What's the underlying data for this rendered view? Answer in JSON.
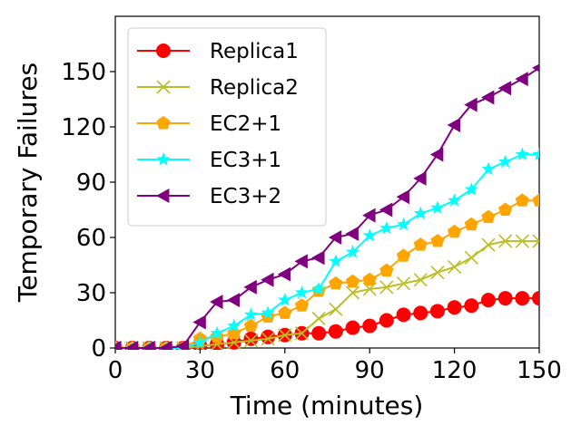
{
  "chart_data": {
    "type": "line",
    "title": "",
    "xlabel": "Time (minutes)",
    "ylabel": "Temporary Failures",
    "xlim": [
      0,
      150
    ],
    "ylim": [
      0,
      180
    ],
    "xticks": [
      0,
      30,
      60,
      90,
      120,
      150
    ],
    "yticks": [
      0,
      30,
      60,
      90,
      120,
      150
    ],
    "grid": false,
    "legend_position": "top-left",
    "x": [
      0,
      6,
      12,
      18,
      24,
      30,
      36,
      42,
      48,
      54,
      60,
      66,
      72,
      78,
      84,
      90,
      96,
      102,
      108,
      114,
      120,
      126,
      132,
      138,
      144,
      150
    ],
    "series": [
      {
        "name": "Replica1",
        "color": "#ff0000",
        "marker": "circle",
        "values": [
          0,
          0,
          0,
          0,
          0,
          1,
          2,
          3,
          5,
          6,
          7,
          8,
          8,
          9,
          11,
          12,
          15,
          18,
          19,
          20,
          22,
          23,
          26,
          27,
          27,
          27
        ]
      },
      {
        "name": "Replica2",
        "color": "#bcbd22",
        "marker": "x",
        "values": [
          0,
          0,
          0,
          0,
          0,
          1,
          2,
          3,
          4,
          5,
          7,
          8,
          16,
          21,
          30,
          32,
          33,
          35,
          37,
          41,
          44,
          49,
          56,
          58,
          58,
          58
        ]
      },
      {
        "name": "EC2+1",
        "color": "#ffa500",
        "marker": "pentagon",
        "values": [
          0,
          0,
          0,
          0,
          0,
          5,
          6,
          8,
          12,
          17,
          19,
          23,
          31,
          35,
          36,
          37,
          42,
          50,
          56,
          58,
          63,
          67,
          71,
          75,
          80,
          80
        ]
      },
      {
        "name": "EC3+1",
        "color": "#00ffff",
        "marker": "star",
        "values": [
          0,
          0,
          0,
          0,
          0,
          3,
          8,
          12,
          18,
          19,
          26,
          30,
          32,
          47,
          52,
          61,
          65,
          67,
          73,
          76,
          80,
          86,
          97,
          101,
          105,
          105
        ]
      },
      {
        "name": "EC3+2",
        "color": "#800080",
        "marker": "triangle-left",
        "values": [
          0,
          0,
          0,
          0,
          1,
          14,
          25,
          26,
          33,
          37,
          40,
          47,
          49,
          60,
          62,
          72,
          75,
          82,
          92,
          105,
          121,
          132,
          136,
          141,
          146,
          152
        ]
      }
    ]
  }
}
